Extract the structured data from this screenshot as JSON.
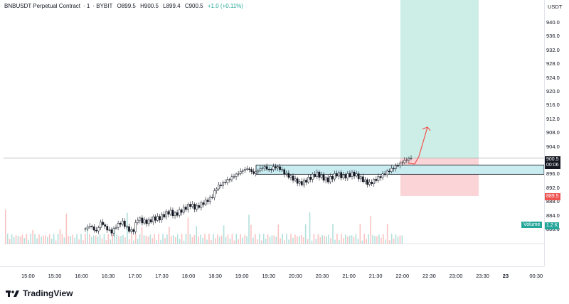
{
  "legend": {
    "symbol": "BNBUSDT Perpetual Contract",
    "interval": "1",
    "exchange": "BYBIT",
    "open": "O899.5",
    "high": "H900.5",
    "low": "L899.4",
    "close": "C900.5",
    "change": "+1.0 (+0.11%)"
  },
  "price_axis": {
    "currency": "USDT",
    "ticks": [
      "940.0",
      "936.0",
      "932.0",
      "928.0",
      "924.0",
      "920.0",
      "916.0",
      "912.0",
      "908.0",
      "904.0",
      "900.0",
      "896.0",
      "892.0",
      "888.0",
      "884.0",
      "880.0"
    ]
  },
  "time_axis": {
    "ticks": [
      "15:00",
      "15:30",
      "16:00",
      "16:30",
      "17:00",
      "17:30",
      "18:00",
      "18:30",
      "19:00",
      "19:30",
      "20:00",
      "20:30",
      "21:00",
      "21:30",
      "22:00",
      "22:30",
      "23:00",
      "23:30",
      "23",
      "00:30"
    ]
  },
  "last_price": {
    "value": "900.5",
    "countdown": "00:06"
  },
  "stop_price": "889.5",
  "volume": {
    "label": "Volume",
    "value": "1.2 K"
  },
  "branding": "TradingView",
  "colors": {
    "up": "#26a69a",
    "down": "#ef5350",
    "profit_zone": "#cdeee6",
    "loss_zone": "#fad4d6",
    "range_box": "#c8ecf0",
    "arrow": "#ef5350"
  },
  "chart_data": {
    "type": "candlestick",
    "price_range": [
      876,
      944
    ],
    "series_path_prices": [
      880,
      881,
      879,
      882,
      880,
      879,
      881,
      882,
      880,
      879,
      883,
      882,
      882,
      883,
      883,
      884,
      885,
      884,
      885,
      886,
      887,
      886,
      887,
      888,
      889,
      892,
      893,
      894,
      895,
      896,
      897,
      897.5,
      896,
      897,
      898,
      897,
      898,
      897.5,
      896,
      895,
      894,
      893,
      894,
      895,
      896,
      895,
      894,
      895,
      896,
      895,
      895.5,
      896,
      895,
      894,
      893,
      894,
      895,
      896,
      897,
      898,
      899,
      900,
      900.5
    ],
    "entry_zone": [
      895.8,
      898.5
    ],
    "stop_level": 889.5,
    "target_level": 944,
    "resistance_line": 900.5
  }
}
